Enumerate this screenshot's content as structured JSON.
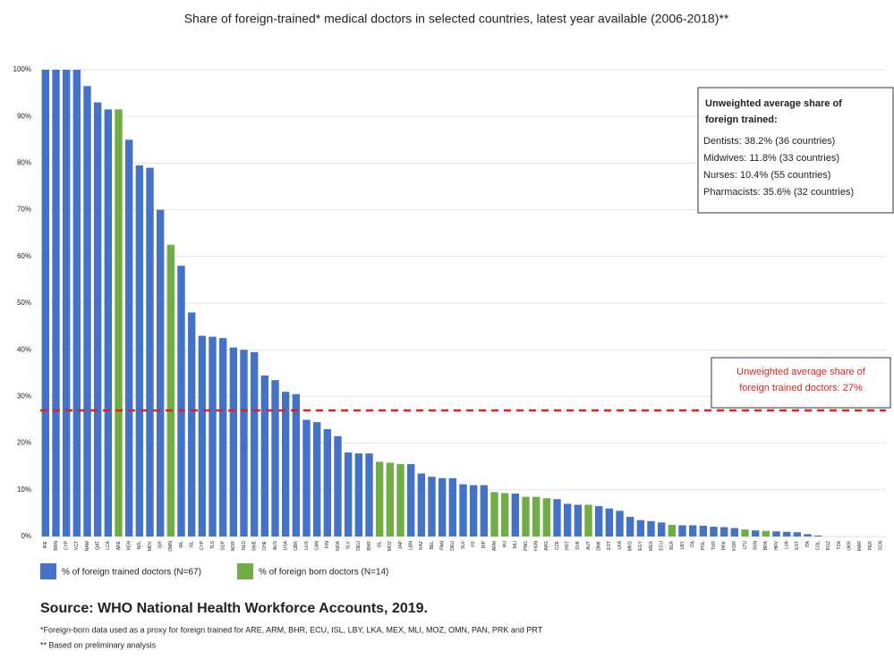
{
  "chart_data": {
    "type": "bar",
    "title": "Share of foreign-trained* medical doctors in selected countries, latest year available (2006-2018)**",
    "categories": [
      "IRE",
      "BRN",
      "CYP",
      "VCT",
      "NAM",
      "QAT",
      "LCA",
      "ARE",
      "KEN",
      "NZL",
      "MDV",
      "ISR",
      "OMN",
      "IRL",
      "ISL",
      "CYP",
      "TLS",
      "SGP",
      "NOR",
      "NLD",
      "SWE",
      "CHE",
      "AUS",
      "USA",
      "GBR",
      "LUX",
      "CAN",
      "FIN",
      "NOA",
      "SLV",
      "DEU",
      "BHR",
      "ISL",
      "MOZ",
      "JAP",
      "LBN",
      "KAZ",
      "BEL",
      "PAN",
      "DEU",
      "SLV",
      "FR",
      "DIP",
      "ARM",
      "HU",
      "MLI",
      "PNG",
      "HUN",
      "ARG",
      "CZE",
      "PRT",
      "SVK",
      "AUT",
      "DNK",
      "EST",
      "LKA",
      "MKD",
      "EGY",
      "MEX",
      "ECU",
      "BLR",
      "LBY",
      "ITA",
      "POL",
      "TUR",
      "PRK",
      "KOR",
      "LTU",
      "SVN",
      "BRA",
      "HRV",
      "LVA",
      "EST",
      "ITA",
      "COL",
      "KGZ",
      "TZA",
      "UKR",
      "MAR",
      "PER",
      "SCN"
    ],
    "series": [
      {
        "name": "% of foreign trained doctors (N=67)",
        "color": "#4472c4",
        "values": [
          100,
          100,
          100,
          100,
          96.5,
          93,
          91.5,
          null,
          85,
          79.5,
          79,
          70,
          null,
          58,
          48,
          43,
          42.8,
          42.5,
          40.5,
          40,
          39.5,
          34.5,
          33.5,
          31,
          30.5,
          25,
          24.5,
          23,
          21.5,
          18,
          17.8,
          17.8,
          null,
          null,
          null,
          15.5,
          13.5,
          12.8,
          12.5,
          12.5,
          11.2,
          11,
          11,
          null,
          null,
          9.2,
          null,
          null,
          null,
          8,
          7,
          6.8,
          null,
          6.5,
          6,
          5.5,
          4.2,
          3.5,
          3.3,
          3,
          null,
          2.4,
          2.4,
          2.3,
          2.1,
          2,
          1.8,
          null,
          1.3,
          null,
          1.1,
          1,
          0.9,
          0.5,
          0.2,
          0,
          0,
          0,
          0,
          0,
          0
        ]
      },
      {
        "name": "% of foreign born doctors (N=14)",
        "color": "#70ad47",
        "values": [
          null,
          null,
          null,
          null,
          null,
          null,
          null,
          91.5,
          null,
          null,
          null,
          null,
          62.5,
          null,
          null,
          null,
          null,
          null,
          null,
          null,
          null,
          null,
          null,
          null,
          null,
          null,
          null,
          null,
          null,
          null,
          null,
          null,
          16,
          15.8,
          15.5,
          null,
          null,
          null,
          null,
          null,
          null,
          null,
          null,
          9.5,
          9.3,
          null,
          8.5,
          8.5,
          8.2,
          null,
          null,
          null,
          6.8,
          null,
          null,
          null,
          null,
          null,
          null,
          null,
          2.5,
          null,
          null,
          null,
          null,
          null,
          null,
          1.5,
          null,
          1.2,
          null,
          null,
          null,
          null,
          null,
          null,
          null,
          null,
          null,
          null,
          null
        ]
      }
    ],
    "ylim": [
      0,
      100
    ],
    "yticks": [
      {
        "value": 0,
        "label": "0%"
      },
      {
        "value": 10,
        "label": "10%"
      },
      {
        "value": 20,
        "label": "20%"
      },
      {
        "value": 30,
        "label": "30%"
      },
      {
        "value": 40,
        "label": "40%"
      },
      {
        "value": 50,
        "label": "50%"
      },
      {
        "value": 60,
        "label": "60%"
      },
      {
        "value": 70,
        "label": "70%"
      },
      {
        "value": 80,
        "label": "80%"
      },
      {
        "value": 90,
        "label": "90%"
      },
      {
        "value": 100,
        "label": "100%"
      }
    ],
    "grid": true,
    "reference_line": {
      "value": 27,
      "color": "#e02020",
      "label": [
        "Unweighted average share of",
        "foreign trained doctors: 27%"
      ]
    },
    "info_box": {
      "heading": [
        "Unweighted average share of",
        "foreign trained:"
      ],
      "lines": [
        "Dentists: 38.2% (36 countries)",
        "Midwives: 11.8% (33 countries)",
        "Nurses: 10.4% (55 countries)",
        "Pharmacists: 35.6% (32 countries)"
      ]
    },
    "source": "Source: WHO National Health Workforce Accounts, 2019.",
    "footnotes": [
      "*Foreign-born data used as a proxy for foreign trained for ARE, ARM, BHR, ECU, ISL, LBY, LKA, MEX, MLI, MOZ, OMN, PAN, PRK and PRT",
      "** Based on preliminary analysis"
    ]
  }
}
